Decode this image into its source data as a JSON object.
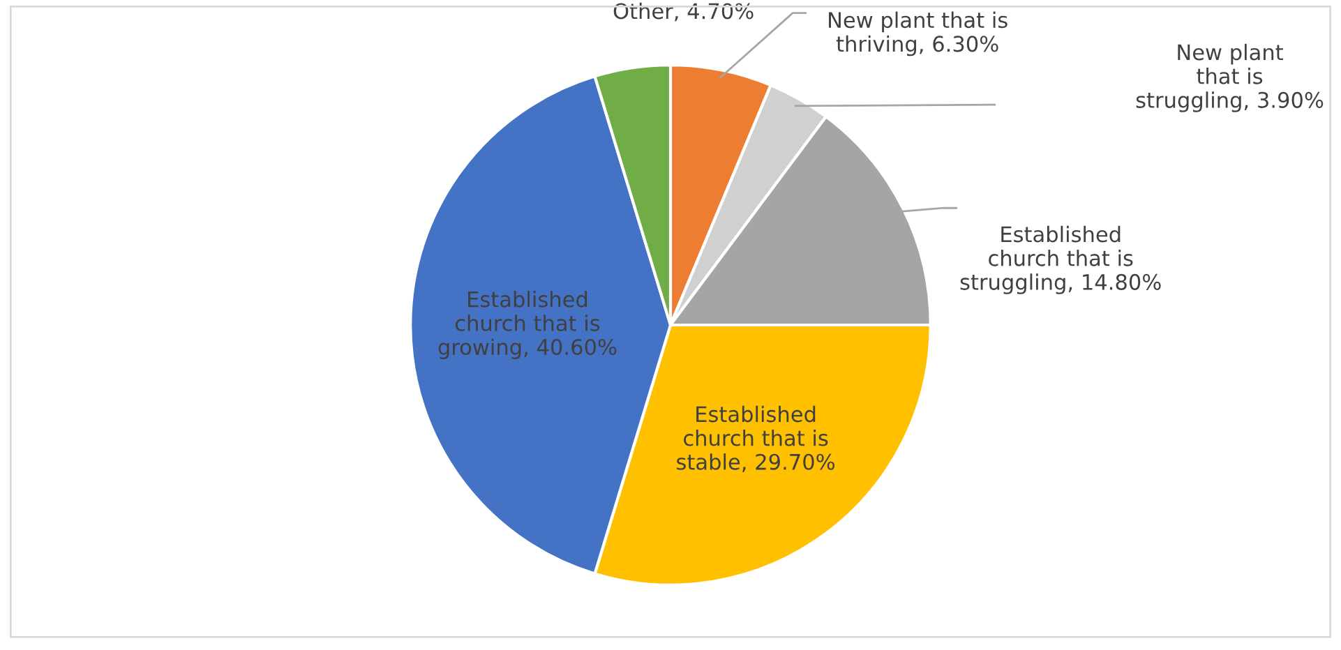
{
  "chart_data": {
    "type": "pie",
    "categories": [
      "New plant that is\nthriving",
      "New plant\nthat is\nstruggling",
      "Established\nchurch that is\nstruggling",
      "Established\nchurch that is\nstable",
      "Established\nchurch that is\ngrowing",
      "Other"
    ],
    "values": [
      6.3,
      3.9,
      14.8,
      29.7,
      40.6,
      4.7
    ],
    "value_labels": [
      "6.30%",
      "3.90%",
      "14.80%",
      "29.70%",
      "40.60%",
      "4.70%"
    ],
    "colors": [
      "#ed7d31",
      "#d0d0d0",
      "#a5a5a5",
      "#ffc000",
      "#4472c4",
      "#70ad47"
    ],
    "legend": false
  }
}
